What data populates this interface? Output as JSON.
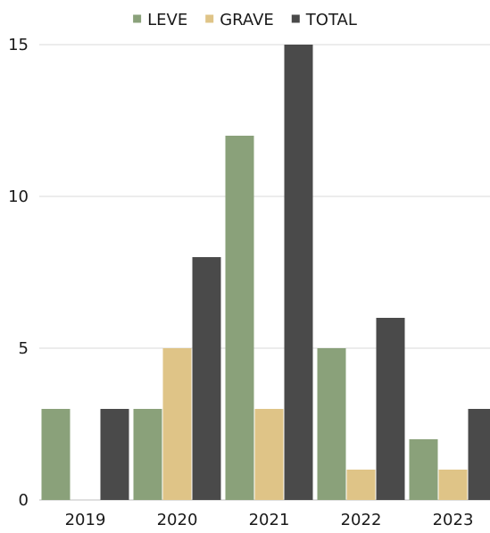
{
  "chart_data": {
    "type": "bar",
    "title": "",
    "xlabel": "",
    "ylabel": "",
    "categories": [
      "2019",
      "2020",
      "2021",
      "2022",
      "2023"
    ],
    "series": [
      {
        "name": "LEVE",
        "color": "#8aa17a",
        "values": [
          3,
          3,
          12,
          5,
          2
        ]
      },
      {
        "name": "GRAVE",
        "color": "#dfc487",
        "values": [
          0,
          5,
          3,
          1,
          1
        ]
      },
      {
        "name": "TOTAL",
        "color": "#4a4a4a",
        "values": [
          3,
          8,
          15,
          6,
          3
        ]
      }
    ],
    "ylim": [
      0,
      15
    ],
    "yticks": [
      "0",
      "5",
      "10",
      "15"
    ],
    "grid": true,
    "legend_position": "top-center"
  }
}
